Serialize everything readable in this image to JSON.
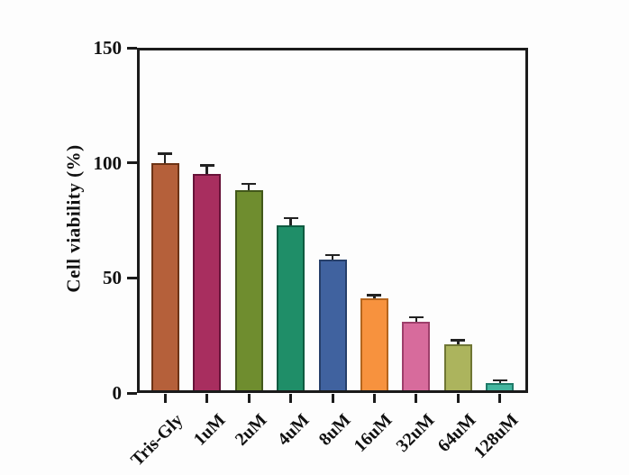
{
  "page": {
    "background": "#fdfdfd"
  },
  "chart_data": {
    "type": "bar",
    "title": "",
    "xlabel": "",
    "ylabel": "Cell viability (%)",
    "categories": [
      "Tris-Gly",
      "1uM",
      "2uM",
      "4uM",
      "8uM",
      "16uM",
      "32uM",
      "64uM",
      "128uM"
    ],
    "values": [
      100,
      95,
      88,
      73,
      58,
      41,
      31,
      21,
      4.5
    ],
    "errors": [
      4,
      4,
      3,
      3,
      2,
      1.5,
      2,
      2,
      1
    ],
    "bar_colors": [
      "#b5603a",
      "#a82e5f",
      "#6f8d2f",
      "#1f8e68",
      "#40629f",
      "#f7923e",
      "#d76b9c",
      "#acb45d",
      "#44b69f"
    ],
    "bar_outline_colors": [
      "#6d3315",
      "#671238",
      "#42581a",
      "#0e5a40",
      "#263f6a",
      "#b5651d",
      "#9d3f6b",
      "#6f7634",
      "#1f7a68"
    ],
    "error_color": "#222222",
    "axis_color": "#1b1b1b",
    "ylim": [
      0,
      150
    ],
    "yticks": [
      0,
      50,
      100,
      150
    ],
    "grid": false,
    "legend": null,
    "frame": "full-box"
  }
}
